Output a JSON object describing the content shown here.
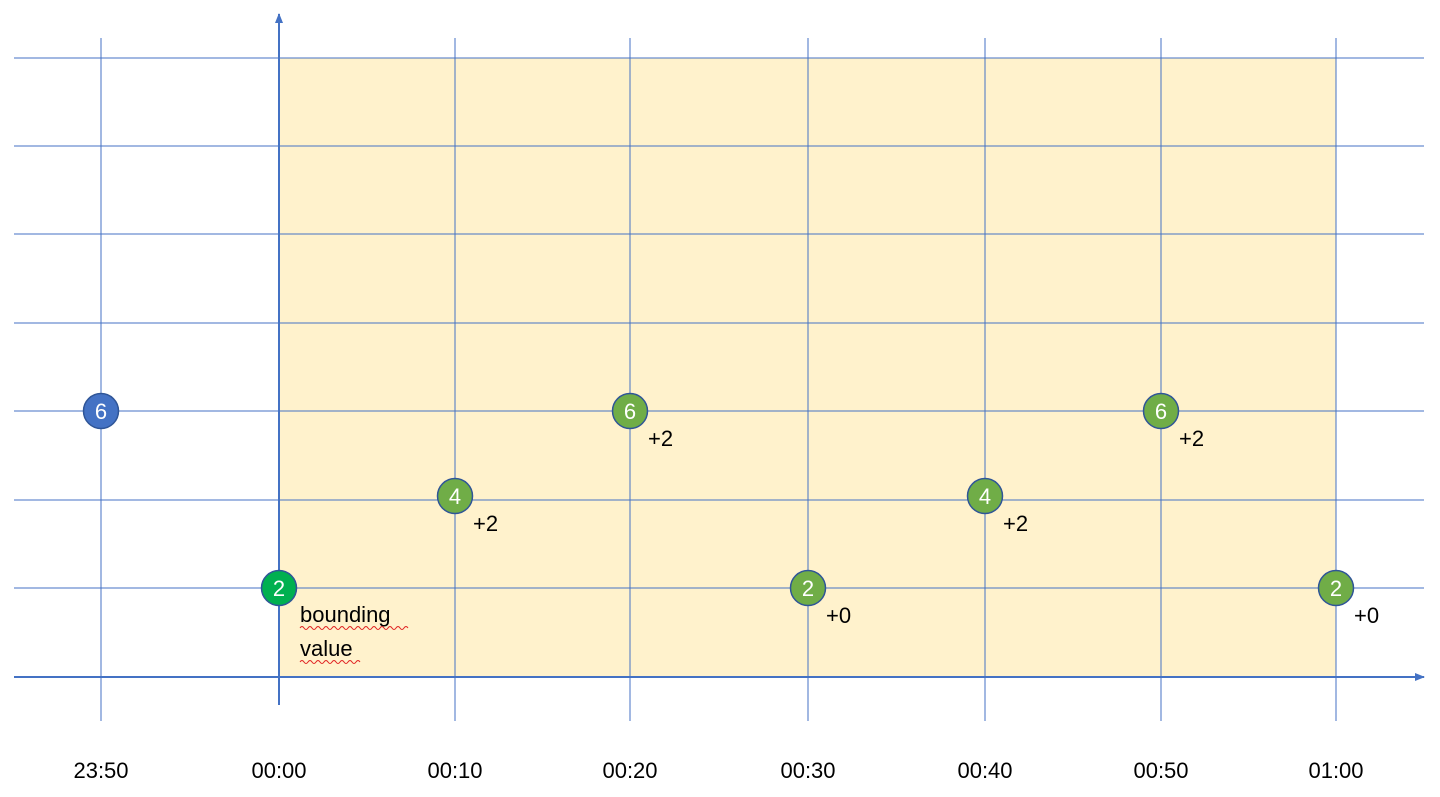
{
  "ticks": [
    "23:50",
    "00:00",
    "00:10",
    "00:20",
    "00:30",
    "00:40",
    "00:50",
    "01:00"
  ],
  "colors": {
    "grid": "#4472C4",
    "window_fill": "#FFF2CC",
    "outside_point": "#4472C4",
    "bounding_point": "#00B050",
    "inside_point": "#70AD47",
    "point_border": "#2F5597"
  },
  "points": [
    {
      "time": "23:50",
      "value": "6",
      "kind": "outside",
      "delta": ""
    },
    {
      "time": "00:00",
      "value": "2",
      "kind": "bounding",
      "delta": ""
    },
    {
      "time": "00:10",
      "value": "4",
      "kind": "inside",
      "delta": "+2"
    },
    {
      "time": "00:20",
      "value": "6",
      "kind": "inside",
      "delta": "+2"
    },
    {
      "time": "00:30",
      "value": "2",
      "kind": "inside",
      "delta": "+0"
    },
    {
      "time": "00:40",
      "value": "4",
      "kind": "inside",
      "delta": "+2"
    },
    {
      "time": "00:50",
      "value": "6",
      "kind": "inside",
      "delta": "+2"
    },
    {
      "time": "01:00",
      "value": "2",
      "kind": "inside",
      "delta": "+0"
    }
  ],
  "annotation": {
    "line1": "bounding",
    "line2": "value"
  }
}
